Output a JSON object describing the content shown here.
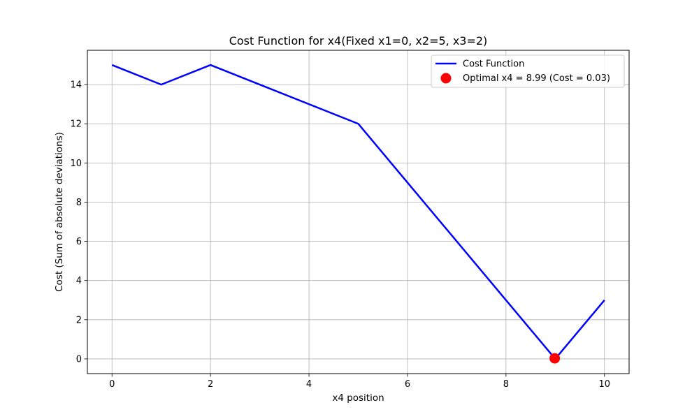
{
  "chart_data": {
    "type": "line",
    "title": "Cost Function for x4(Fixed x1=0, x2=5, x3=2)",
    "xlabel": "x4 position",
    "ylabel": "Cost (Sum of absolute deviations)",
    "xlim": [
      -0.5,
      10.5
    ],
    "ylim": [
      -0.75,
      15.75
    ],
    "xticks": [
      0,
      2,
      4,
      6,
      8,
      10
    ],
    "yticks": [
      0,
      2,
      4,
      6,
      8,
      10,
      12,
      14
    ],
    "grid": true,
    "legend_position": "top-right",
    "series": [
      {
        "name": "Cost Function",
        "kind": "line",
        "color": "#0000ff",
        "x": [
          0,
          1,
          2,
          5,
          9,
          10
        ],
        "y": [
          15,
          14,
          15,
          12,
          0,
          3
        ]
      },
      {
        "name": "Optimal x4 = 8.99 (Cost = 0.03)",
        "kind": "scatter",
        "color": "#ff0000",
        "x": [
          8.99
        ],
        "y": [
          0.03
        ]
      }
    ]
  }
}
